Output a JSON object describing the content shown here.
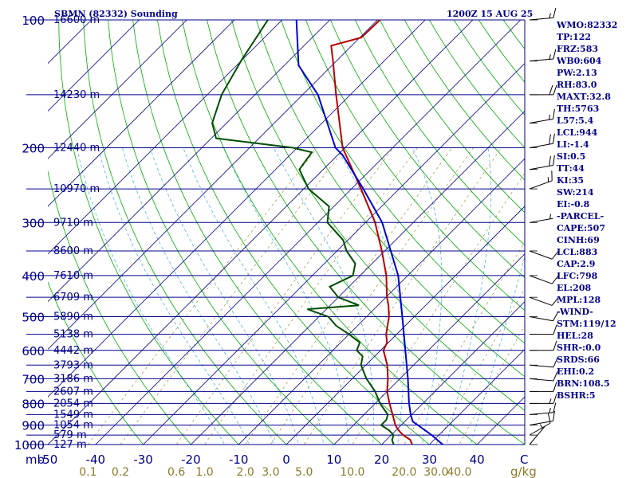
{
  "header": {
    "station": "SBMN (82332) Sounding",
    "time": "1200Z 15 AUG 25"
  },
  "colors": {
    "isobar": "#00008b",
    "isotherm": "#00008b",
    "dry_adiabat": "#00aa00",
    "moist_adiabat": "#55b4e8",
    "mixing_ratio": "#b09a5a",
    "temperature": "#b40000",
    "dewpoint": "#004d00",
    "parcel": "#0000cd",
    "label_text": "#00008b",
    "label_tan": "#8b7a2b"
  },
  "indices": [
    "WMO:82332",
    "TP:122",
    "FRZ:583",
    "WB0:604",
    "PW:2.13",
    "RH:83.0",
    "MAXT:32.8",
    "TH:5763",
    "L57:5.4",
    "LCL:944",
    "LI:-1.4",
    "SI:0.5",
    "TT:44",
    "KI:35",
    "SW:214",
    "EI:-0.8",
    "-PARCEL-",
    "CAPE:507",
    "CINH:69",
    "LCL:883",
    "CAP:2.9",
    "LFC:798",
    "EL:208",
    "MPL:128",
    "-WIND-",
    "STM:119/12",
    "HEL:28",
    "SHR-:0.0",
    "SRDS:66",
    "EHI:0.2",
    "BRN:108.5",
    "BSHR:5"
  ],
  "chart_data": {
    "type": "line",
    "title": "SBMN (82332) Sounding",
    "subtitle": "1200Z 15 AUG 25",
    "ylabel": "mb",
    "xlabel": "C",
    "mixing_ratio_unit": "g/kg",
    "grid": true,
    "pressure_ticks": [
      100,
      200,
      300,
      400,
      500,
      600,
      700,
      800,
      900,
      1000
    ],
    "temperature_ticks": [
      -50,
      -40,
      -30,
      -20,
      -10,
      0,
      10,
      20,
      30,
      40
    ],
    "temperature_axis_end_label": "C",
    "mixing_ratio_labels": [
      "0.1",
      "0.2",
      "0.6",
      "1.0",
      "2.0",
      "3.0",
      "5.0",
      "10.0",
      "20.0",
      "30.0",
      "40.0"
    ],
    "ylim": [
      1000,
      100
    ],
    "xlim": [
      -50,
      50
    ],
    "height_labels": [
      {
        "p": 100,
        "text": "16600 m"
      },
      {
        "p": 150,
        "text": "14230 m"
      },
      {
        "p": 200,
        "text": "12440 m"
      },
      {
        "p": 250,
        "text": "10970 m"
      },
      {
        "p": 300,
        "text": "9710 m"
      },
      {
        "p": 350,
        "text": "8600 m"
      },
      {
        "p": 400,
        "text": "7610 m"
      },
      {
        "p": 450,
        "text": "6709 m"
      },
      {
        "p": 500,
        "text": "5890 m"
      },
      {
        "p": 550,
        "text": "5138 m"
      },
      {
        "p": 600,
        "text": "4442 m"
      },
      {
        "p": 650,
        "text": "3793 m"
      },
      {
        "p": 700,
        "text": "3186 m"
      },
      {
        "p": 750,
        "text": "2607 m"
      },
      {
        "p": 800,
        "text": "2054 m"
      },
      {
        "p": 850,
        "text": "1549 m"
      },
      {
        "p": 900,
        "text": "1054 m"
      },
      {
        "p": 950,
        "text": "579 m"
      },
      {
        "p": 1000,
        "text": "127 m"
      }
    ],
    "series": [
      {
        "name": "temperature",
        "points": [
          {
            "p": 1000,
            "t": 26.4
          },
          {
            "p": 975,
            "t": 25.0
          },
          {
            "p": 950,
            "t": 22.5
          },
          {
            "p": 925,
            "t": 20.5
          },
          {
            "p": 900,
            "t": 18.8
          },
          {
            "p": 850,
            "t": 16.0
          },
          {
            "p": 800,
            "t": 13.0
          },
          {
            "p": 750,
            "t": 10.0
          },
          {
            "p": 700,
            "t": 7.5
          },
          {
            "p": 650,
            "t": 4.5
          },
          {
            "p": 620,
            "t": 2.2
          },
          {
            "p": 600,
            "t": 0.6
          },
          {
            "p": 575,
            "t": -0.3
          },
          {
            "p": 550,
            "t": -2.2
          },
          {
            "p": 500,
            "t": -5.3
          },
          {
            "p": 470,
            "t": -7.8
          },
          {
            "p": 450,
            "t": -9.8
          },
          {
            "p": 400,
            "t": -14.5
          },
          {
            "p": 350,
            "t": -20.6
          },
          {
            "p": 300,
            "t": -28.0
          },
          {
            "p": 250,
            "t": -38.0
          },
          {
            "p": 200,
            "t": -50.5
          },
          {
            "p": 175,
            "t": -56.3
          },
          {
            "p": 150,
            "t": -63.0
          },
          {
            "p": 125,
            "t": -70.7
          },
          {
            "p": 115,
            "t": -74.3
          },
          {
            "p": 110,
            "t": -69.7
          },
          {
            "p": 100,
            "t": -69.5
          }
        ]
      },
      {
        "name": "dewpoint",
        "points": [
          {
            "p": 1000,
            "t": 22.5
          },
          {
            "p": 975,
            "t": 21.2
          },
          {
            "p": 950,
            "t": 20.5
          },
          {
            "p": 925,
            "t": 18.5
          },
          {
            "p": 900,
            "t": 15.8
          },
          {
            "p": 875,
            "t": 15.8
          },
          {
            "p": 850,
            "t": 15.0
          },
          {
            "p": 800,
            "t": 11.0
          },
          {
            "p": 750,
            "t": 7.5
          },
          {
            "p": 700,
            "t": 3.0
          },
          {
            "p": 650,
            "t": -1.0
          },
          {
            "p": 620,
            "t": -2.5
          },
          {
            "p": 600,
            "t": -5.0
          },
          {
            "p": 575,
            "t": -6.0
          },
          {
            "p": 550,
            "t": -10.0
          },
          {
            "p": 525,
            "t": -14.5
          },
          {
            "p": 500,
            "t": -18.0
          },
          {
            "p": 480,
            "t": -24.0
          },
          {
            "p": 470,
            "t": -14.0
          },
          {
            "p": 450,
            "t": -20.0
          },
          {
            "p": 425,
            "t": -24.0
          },
          {
            "p": 400,
            "t": -21.5
          },
          {
            "p": 375,
            "t": -23.5
          },
          {
            "p": 350,
            "t": -28.0
          },
          {
            "p": 330,
            "t": -31.0
          },
          {
            "p": 300,
            "t": -38.0
          },
          {
            "p": 275,
            "t": -41.0
          },
          {
            "p": 250,
            "t": -49.0
          },
          {
            "p": 225,
            "t": -55.0
          },
          {
            "p": 205,
            "t": -56.0
          },
          {
            "p": 200,
            "t": -61.0
          },
          {
            "p": 190,
            "t": -79.0
          },
          {
            "p": 175,
            "t": -83.0
          },
          {
            "p": 150,
            "t": -87.0
          },
          {
            "p": 125,
            "t": -90.0
          },
          {
            "p": 100,
            "t": -93.0
          }
        ]
      },
      {
        "name": "parcel",
        "points": [
          {
            "p": 1000,
            "t": 32.8
          },
          {
            "p": 950,
            "t": 28.5
          },
          {
            "p": 900,
            "t": 23.5
          },
          {
            "p": 883,
            "t": 21.7
          },
          {
            "p": 850,
            "t": 19.8
          },
          {
            "p": 800,
            "t": 17.1
          },
          {
            "p": 700,
            "t": 11.7
          },
          {
            "p": 600,
            "t": 5.2
          },
          {
            "p": 500,
            "t": -2.5
          },
          {
            "p": 400,
            "t": -12.0
          },
          {
            "p": 300,
            "t": -26.5
          },
          {
            "p": 250,
            "t": -37.5
          },
          {
            "p": 208,
            "t": -49.0
          },
          {
            "p": 200,
            "t": -52.0
          },
          {
            "p": 150,
            "t": -66.8
          },
          {
            "p": 128,
            "t": -77.0
          },
          {
            "p": 100,
            "t": -87.0
          }
        ]
      }
    ],
    "wind_barbs": [
      {
        "p": 100,
        "dir": 85,
        "kt": 15
      },
      {
        "p": 125,
        "dir": 85,
        "kt": 15
      },
      {
        "p": 150,
        "dir": 90,
        "kt": 20
      },
      {
        "p": 175,
        "dir": 80,
        "kt": 15
      },
      {
        "p": 200,
        "dir": 80,
        "kt": 20
      },
      {
        "p": 225,
        "dir": 80,
        "kt": 20
      },
      {
        "p": 250,
        "dir": 70,
        "kt": 15
      },
      {
        "p": 300,
        "dir": 80,
        "kt": 5
      },
      {
        "p": 350,
        "dir": 110,
        "kt": 10
      },
      {
        "p": 400,
        "dir": 110,
        "kt": 10
      },
      {
        "p": 450,
        "dir": 110,
        "kt": 10
      },
      {
        "p": 500,
        "dir": 100,
        "kt": 10
      },
      {
        "p": 550,
        "dir": 90,
        "kt": 10
      },
      {
        "p": 600,
        "dir": 90,
        "kt": 10
      },
      {
        "p": 650,
        "dir": 95,
        "kt": 10
      },
      {
        "p": 700,
        "dir": 95,
        "kt": 10
      },
      {
        "p": 750,
        "dir": 90,
        "kt": 10
      },
      {
        "p": 800,
        "dir": 90,
        "kt": 15
      },
      {
        "p": 850,
        "dir": 85,
        "kt": 15
      },
      {
        "p": 900,
        "dir": 80,
        "kt": 10
      },
      {
        "p": 950,
        "dir": 60,
        "kt": 10
      },
      {
        "p": 1000,
        "dir": 40,
        "kt": 5
      }
    ]
  }
}
